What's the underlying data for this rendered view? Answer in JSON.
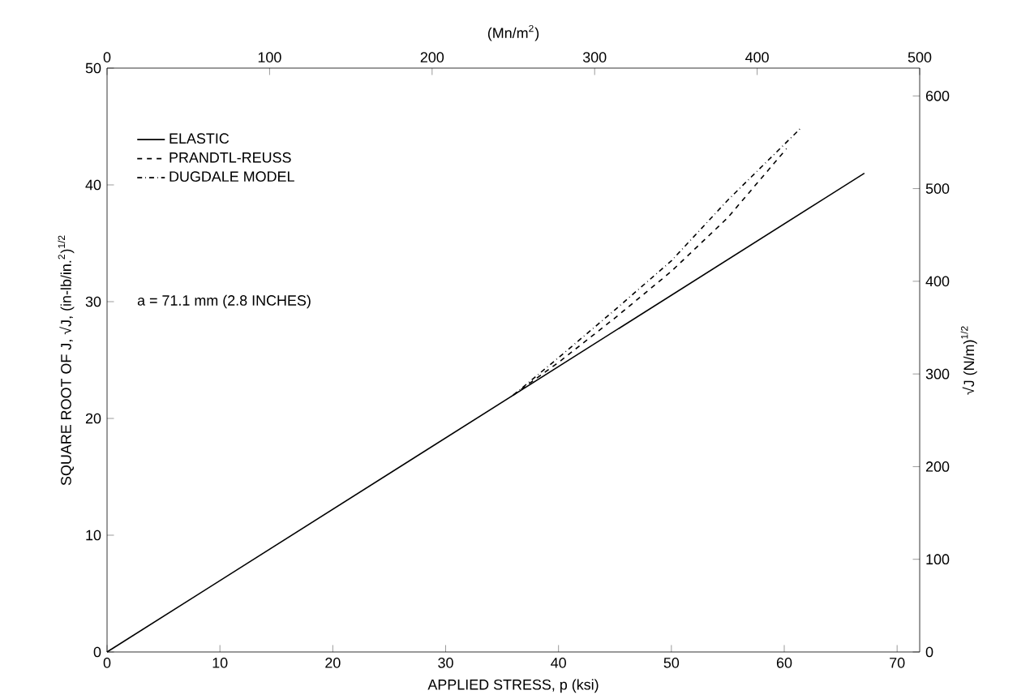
{
  "chart_data": {
    "type": "line",
    "xlabel": "APPLIED STRESS, p (ksi)",
    "ylabel": "SQUARE ROOT OF J, √J, (in-lb/in.$^{2}$)$^{1/2}$",
    "x2label": "(Mn/m$^{2}$)",
    "y2label": "√J (N/m)$^{1/2}$",
    "xlim": [
      0,
      72
    ],
    "xticks": [
      0,
      10,
      20,
      30,
      40,
      50,
      60,
      70
    ],
    "ylim": [
      0,
      50
    ],
    "yticks": [
      0,
      10,
      20,
      30,
      40,
      50
    ],
    "x2lim": [
      0,
      500
    ],
    "x2ticks": [
      0,
      100,
      200,
      300,
      400,
      500
    ],
    "y2lim": [
      0,
      630
    ],
    "y2ticks": [
      0,
      100,
      200,
      300,
      400,
      500,
      600
    ],
    "legend": "top left",
    "grid": false,
    "marker": "none",
    "annotations": [
      "a = 71.1 mm (2.8 INCHES)"
    ],
    "series": [
      {
        "name": "ELASTIC",
        "color": "#000000",
        "line_style": "solid",
        "x": [
          0,
          67.1
        ],
        "values": [
          0,
          41
        ]
      },
      {
        "name": "PRANDTL-REUSS",
        "color": "#000000",
        "line_style": "dashed",
        "x": [
          36,
          40,
          45,
          50,
          55,
          60.2
        ],
        "values": [
          22,
          24.8,
          28.6,
          32.6,
          37.2,
          43.1
        ]
      },
      {
        "name": "DUGDALE MODEL",
        "color": "#000000",
        "line_style": "dashdotted",
        "x": [
          36,
          40,
          45,
          50,
          55,
          61.4
        ],
        "values": [
          22,
          25.2,
          29.3,
          33.5,
          38.7,
          44.8
        ]
      }
    ]
  }
}
